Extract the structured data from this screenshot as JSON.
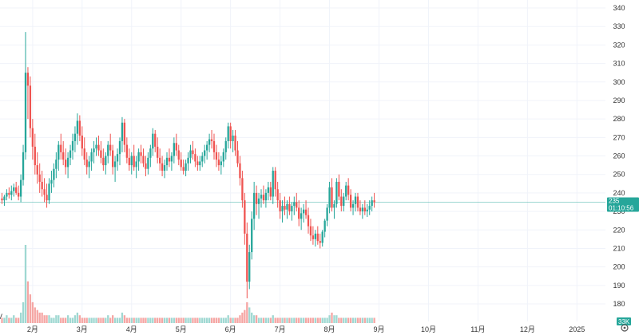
{
  "chart_data": {
    "type": "candlestick",
    "price_axis": {
      "ticks": [
        180,
        190,
        200,
        210,
        220,
        230,
        240,
        250,
        260,
        270,
        280,
        290,
        300,
        310,
        320,
        330,
        340
      ],
      "range": [
        173,
        345
      ]
    },
    "time_axis": {
      "labels": [
        "2月",
        "3月",
        "4月",
        "5月",
        "6月",
        "7月",
        "8月",
        "9月",
        "10月",
        "11月",
        "12月",
        "2025"
      ],
      "label_index": [
        13,
        34,
        55,
        76,
        97,
        118,
        139,
        160,
        181,
        202,
        223,
        244
      ]
    },
    "volume_axis": {
      "label": "33K"
    },
    "last_price": {
      "value": "235",
      "countdown": "01:10:56",
      "level": 235
    },
    "colors": {
      "up": "#26a69a",
      "down": "#ef5350",
      "volume_up": "#9fd8d2",
      "volume_down": "#f5a6a4",
      "grid": "#f0f3fa",
      "badge": "#26a69a"
    },
    "grid": true,
    "candles": [
      [
        237,
        240,
        234,
        236
      ],
      [
        236,
        239,
        233,
        238
      ],
      [
        238,
        242,
        236,
        240
      ],
      [
        240,
        243,
        237,
        239
      ],
      [
        239,
        244,
        236,
        241
      ],
      [
        241,
        245,
        238,
        243
      ],
      [
        243,
        246,
        239,
        240
      ],
      [
        240,
        244,
        236,
        238
      ],
      [
        238,
        250,
        235,
        247
      ],
      [
        247,
        266,
        244,
        262
      ],
      [
        262,
        327,
        258,
        305
      ],
      [
        305,
        308,
        280,
        298
      ],
      [
        298,
        303,
        270,
        275
      ],
      [
        275,
        280,
        258,
        265
      ],
      [
        265,
        272,
        250,
        255
      ],
      [
        255,
        262,
        245,
        250
      ],
      [
        250,
        256,
        240,
        246
      ],
      [
        246,
        252,
        238,
        242
      ],
      [
        242,
        248,
        235,
        239
      ],
      [
        239,
        245,
        232,
        236
      ],
      [
        236,
        248,
        234,
        245
      ],
      [
        245,
        252,
        240,
        247
      ],
      [
        247,
        256,
        243,
        253
      ],
      [
        253,
        262,
        248,
        258
      ],
      [
        258,
        268,
        252,
        266
      ],
      [
        266,
        272,
        258,
        262
      ],
      [
        262,
        268,
        255,
        258
      ],
      [
        258,
        264,
        250,
        254
      ],
      [
        254,
        262,
        248,
        259
      ],
      [
        259,
        266,
        255,
        263
      ],
      [
        263,
        272,
        258,
        268
      ],
      [
        268,
        276,
        262,
        272
      ],
      [
        272,
        283,
        266,
        279
      ],
      [
        279,
        282,
        268,
        271
      ],
      [
        271,
        276,
        260,
        264
      ],
      [
        264,
        270,
        255,
        258
      ],
      [
        258,
        262,
        250,
        254
      ],
      [
        254,
        260,
        248,
        257
      ],
      [
        257,
        264,
        252,
        262
      ],
      [
        262,
        268,
        256,
        264
      ],
      [
        264,
        270,
        260,
        266
      ],
      [
        266,
        271,
        260,
        263
      ],
      [
        263,
        268,
        256,
        259
      ],
      [
        259,
        264,
        252,
        255
      ],
      [
        255,
        262,
        250,
        260
      ],
      [
        260,
        268,
        256,
        266
      ],
      [
        266,
        272,
        260,
        263
      ],
      [
        263,
        266,
        250,
        254
      ],
      [
        254,
        260,
        246,
        257
      ],
      [
        257,
        264,
        252,
        261
      ],
      [
        261,
        270,
        255,
        268
      ],
      [
        268,
        281,
        262,
        278
      ],
      [
        278,
        280,
        262,
        266
      ],
      [
        266,
        270,
        256,
        259
      ],
      [
        259,
        264,
        252,
        255
      ],
      [
        255,
        262,
        250,
        260
      ],
      [
        260,
        266,
        252,
        254
      ],
      [
        254,
        260,
        248,
        257
      ],
      [
        257,
        264,
        252,
        262
      ],
      [
        262,
        266,
        256,
        260
      ],
      [
        260,
        264,
        254,
        256
      ],
      [
        256,
        260,
        249,
        253
      ],
      [
        253,
        262,
        250,
        259
      ],
      [
        259,
        266,
        254,
        264
      ],
      [
        264,
        275,
        260,
        272
      ],
      [
        272,
        274,
        262,
        265
      ],
      [
        265,
        270,
        256,
        259
      ],
      [
        259,
        264,
        252,
        256
      ],
      [
        256,
        260,
        249,
        252
      ],
      [
        252,
        258,
        248,
        255
      ],
      [
        255,
        262,
        252,
        259
      ],
      [
        259,
        264,
        254,
        257
      ],
      [
        257,
        262,
        252,
        260
      ],
      [
        260,
        270,
        256,
        267
      ],
      [
        267,
        272,
        260,
        263
      ],
      [
        263,
        266,
        255,
        258
      ],
      [
        258,
        262,
        252,
        254
      ],
      [
        254,
        258,
        250,
        252
      ],
      [
        252,
        258,
        249,
        256
      ],
      [
        256,
        262,
        252,
        259
      ],
      [
        259,
        266,
        256,
        263
      ],
      [
        263,
        268,
        258,
        261
      ],
      [
        261,
        264,
        254,
        257
      ],
      [
        257,
        260,
        252,
        255
      ],
      [
        255,
        260,
        252,
        257
      ],
      [
        257,
        262,
        254,
        260
      ],
      [
        260,
        266,
        256,
        263
      ],
      [
        263,
        268,
        258,
        266
      ],
      [
        266,
        272,
        262,
        269
      ],
      [
        269,
        274,
        264,
        268
      ],
      [
        268,
        272,
        258,
        262
      ],
      [
        262,
        266,
        254,
        258
      ],
      [
        258,
        262,
        252,
        255
      ],
      [
        255,
        260,
        250,
        257
      ],
      [
        257,
        264,
        254,
        262
      ],
      [
        262,
        270,
        258,
        268
      ],
      [
        268,
        278,
        264,
        276
      ],
      [
        276,
        278,
        264,
        268
      ],
      [
        268,
        274,
        262,
        271
      ],
      [
        271,
        274,
        260,
        263
      ],
      [
        263,
        268,
        254,
        256
      ],
      [
        256,
        260,
        244,
        248
      ],
      [
        248,
        252,
        232,
        236
      ],
      [
        236,
        240,
        212,
        218
      ],
      [
        218,
        224,
        183,
        192
      ],
      [
        192,
        212,
        188,
        208
      ],
      [
        208,
        230,
        204,
        226
      ],
      [
        226,
        246,
        220,
        240
      ],
      [
        240,
        244,
        228,
        234
      ],
      [
        234,
        240,
        226,
        237
      ],
      [
        237,
        242,
        232,
        239
      ],
      [
        239,
        244,
        234,
        236
      ],
      [
        236,
        242,
        232,
        240
      ],
      [
        240,
        246,
        236,
        243
      ],
      [
        243,
        246,
        236,
        238
      ],
      [
        238,
        254,
        234,
        252
      ],
      [
        252,
        254,
        238,
        242
      ],
      [
        242,
        246,
        232,
        236
      ],
      [
        236,
        240,
        226,
        230
      ],
      [
        230,
        236,
        224,
        233
      ],
      [
        233,
        238,
        228,
        231
      ],
      [
        231,
        236,
        226,
        234
      ],
      [
        234,
        238,
        228,
        230
      ],
      [
        230,
        235,
        225,
        233
      ],
      [
        233,
        238,
        228,
        235
      ],
      [
        235,
        240,
        230,
        232
      ],
      [
        232,
        236,
        222,
        226
      ],
      [
        226,
        232,
        220,
        229
      ],
      [
        229,
        234,
        224,
        231
      ],
      [
        231,
        236,
        226,
        228
      ],
      [
        228,
        232,
        218,
        222
      ],
      [
        222,
        226,
        214,
        217
      ],
      [
        217,
        222,
        212,
        215
      ],
      [
        215,
        220,
        211,
        218
      ],
      [
        218,
        222,
        212,
        214
      ],
      [
        214,
        218,
        210,
        213
      ],
      [
        213,
        220,
        211,
        219
      ],
      [
        219,
        226,
        216,
        225
      ],
      [
        225,
        234,
        222,
        232
      ],
      [
        232,
        246,
        229,
        243
      ],
      [
        243,
        248,
        230,
        232
      ],
      [
        232,
        236,
        226,
        234
      ],
      [
        234,
        248,
        232,
        246
      ],
      [
        246,
        250,
        236,
        238
      ],
      [
        238,
        242,
        230,
        233
      ],
      [
        233,
        240,
        230,
        238
      ],
      [
        238,
        246,
        236,
        244
      ],
      [
        244,
        248,
        236,
        239
      ],
      [
        239,
        242,
        230,
        232
      ],
      [
        232,
        236,
        228,
        234
      ],
      [
        234,
        240,
        230,
        238
      ],
      [
        238,
        240,
        230,
        232
      ],
      [
        232,
        236,
        228,
        230
      ],
      [
        230,
        234,
        226,
        232
      ],
      [
        232,
        236,
        228,
        230
      ],
      [
        230,
        234,
        227,
        231
      ],
      [
        231,
        236,
        228,
        233
      ],
      [
        233,
        238,
        230,
        236
      ],
      [
        236,
        240,
        232,
        235
      ]
    ],
    "volumes": [
      2,
      2,
      3,
      2,
      2,
      3,
      2,
      2,
      4,
      8,
      30,
      16,
      11,
      8,
      6,
      5,
      4,
      4,
      3,
      3,
      3,
      2,
      2,
      3,
      3,
      2,
      2,
      2,
      3,
      2,
      2,
      3,
      4,
      3,
      2,
      2,
      2,
      2,
      2,
      2,
      2,
      2,
      2,
      2,
      2,
      3,
      2,
      3,
      2,
      2,
      2,
      4,
      3,
      2,
      2,
      2,
      2,
      2,
      2,
      2,
      2,
      2,
      2,
      2,
      2,
      2,
      2,
      2,
      2,
      2,
      2,
      2,
      2,
      2,
      2,
      2,
      2,
      2,
      2,
      2,
      2,
      2,
      2,
      2,
      2,
      2,
      2,
      2,
      2,
      2,
      2,
      2,
      2,
      2,
      2,
      2,
      3,
      2,
      2,
      2,
      2,
      3,
      4,
      5,
      8,
      6,
      4,
      3,
      3,
      2,
      2,
      2,
      2,
      2,
      2,
      3,
      2,
      2,
      2,
      2,
      2,
      2,
      2,
      2,
      2,
      2,
      2,
      2,
      2,
      2,
      2,
      2,
      2,
      2,
      2,
      2,
      2,
      2,
      2,
      3,
      4,
      3,
      3,
      2,
      2,
      2,
      2,
      2,
      2,
      2,
      2,
      2,
      2,
      2,
      2,
      2,
      2,
      2,
      2
    ]
  },
  "ui": {
    "settings_icon": "gear-icon",
    "partial_logo_glyph": "V"
  }
}
